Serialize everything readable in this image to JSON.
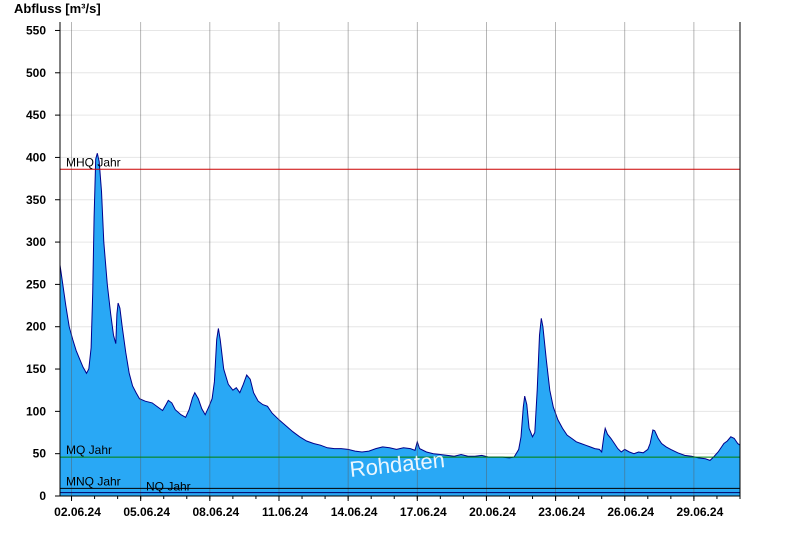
{
  "chart_data": {
    "type": "area",
    "title": "",
    "ylabel": "Abfluss [m³/s]",
    "xlabel": "",
    "ylim": [
      0,
      560
    ],
    "yticks": [
      0,
      50,
      100,
      150,
      200,
      250,
      300,
      350,
      400,
      450,
      500,
      550
    ],
    "x_start_day": 1.5,
    "x_end_day": 31.0,
    "xticks": [
      {
        "day": 2,
        "label": "02.06.24"
      },
      {
        "day": 5,
        "label": "05.06.24"
      },
      {
        "day": 8,
        "label": "08.06.24"
      },
      {
        "day": 11,
        "label": "11.06.24"
      },
      {
        "day": 14,
        "label": "14.06.24"
      },
      {
        "day": 17,
        "label": "17.06.24"
      },
      {
        "day": 20,
        "label": "20.06.24"
      },
      {
        "day": 23,
        "label": "23.06.24"
      },
      {
        "day": 26,
        "label": "26.06.24"
      },
      {
        "day": 29,
        "label": "29.06.24"
      }
    ],
    "grid": "vertical lines at day ticks, horizontal lines at y ticks",
    "series": [
      {
        "color": "#29a8f5",
        "line_color": "#00008b",
        "points": [
          [
            1.5,
            273
          ],
          [
            1.62,
            250
          ],
          [
            1.75,
            225
          ],
          [
            1.9,
            200
          ],
          [
            2.05,
            185
          ],
          [
            2.2,
            172
          ],
          [
            2.35,
            162
          ],
          [
            2.5,
            152
          ],
          [
            2.65,
            145
          ],
          [
            2.75,
            150
          ],
          [
            2.85,
            175
          ],
          [
            2.92,
            240
          ],
          [
            2.98,
            330
          ],
          [
            3.05,
            398
          ],
          [
            3.12,
            405
          ],
          [
            3.2,
            395
          ],
          [
            3.3,
            360
          ],
          [
            3.4,
            300
          ],
          [
            3.55,
            250
          ],
          [
            3.7,
            215
          ],
          [
            3.82,
            190
          ],
          [
            3.92,
            180
          ],
          [
            3.97,
            215
          ],
          [
            4.02,
            228
          ],
          [
            4.1,
            222
          ],
          [
            4.2,
            200
          ],
          [
            4.35,
            170
          ],
          [
            4.5,
            145
          ],
          [
            4.65,
            130
          ],
          [
            4.8,
            122
          ],
          [
            4.95,
            115
          ],
          [
            5.2,
            112
          ],
          [
            5.5,
            110
          ],
          [
            5.8,
            104
          ],
          [
            5.95,
            101
          ],
          [
            6.1,
            108
          ],
          [
            6.2,
            113
          ],
          [
            6.35,
            110
          ],
          [
            6.5,
            102
          ],
          [
            6.75,
            96
          ],
          [
            6.95,
            93
          ],
          [
            7.1,
            102
          ],
          [
            7.25,
            116
          ],
          [
            7.35,
            122
          ],
          [
            7.5,
            115
          ],
          [
            7.65,
            103
          ],
          [
            7.8,
            96
          ],
          [
            7.95,
            105
          ],
          [
            8.1,
            115
          ],
          [
            8.2,
            135
          ],
          [
            8.3,
            185
          ],
          [
            8.37,
            198
          ],
          [
            8.45,
            185
          ],
          [
            8.6,
            150
          ],
          [
            8.8,
            132
          ],
          [
            9.0,
            125
          ],
          [
            9.15,
            128
          ],
          [
            9.3,
            122
          ],
          [
            9.45,
            132
          ],
          [
            9.6,
            143
          ],
          [
            9.75,
            138
          ],
          [
            9.9,
            122
          ],
          [
            10.1,
            112
          ],
          [
            10.3,
            108
          ],
          [
            10.5,
            106
          ],
          [
            10.7,
            98
          ],
          [
            11.0,
            90
          ],
          [
            11.3,
            83
          ],
          [
            11.6,
            76
          ],
          [
            11.9,
            70
          ],
          [
            12.2,
            65
          ],
          [
            12.5,
            62
          ],
          [
            12.8,
            60
          ],
          [
            13.1,
            57
          ],
          [
            13.4,
            56
          ],
          [
            13.7,
            56
          ],
          [
            14.0,
            55
          ],
          [
            14.3,
            53
          ],
          [
            14.6,
            52
          ],
          [
            14.9,
            53
          ],
          [
            15.2,
            56
          ],
          [
            15.5,
            58
          ],
          [
            15.8,
            57
          ],
          [
            16.1,
            55
          ],
          [
            16.4,
            57
          ],
          [
            16.7,
            56
          ],
          [
            16.9,
            54
          ],
          [
            17.0,
            64
          ],
          [
            17.1,
            56
          ],
          [
            17.4,
            52
          ],
          [
            17.7,
            50
          ],
          [
            18.0,
            49
          ],
          [
            18.3,
            48
          ],
          [
            18.6,
            47
          ],
          [
            18.9,
            49
          ],
          [
            19.2,
            47
          ],
          [
            19.5,
            47
          ],
          [
            19.8,
            48
          ],
          [
            20.1,
            46
          ],
          [
            20.4,
            46
          ],
          [
            20.7,
            46
          ],
          [
            21.0,
            45
          ],
          [
            21.2,
            46
          ],
          [
            21.4,
            55
          ],
          [
            21.5,
            70
          ],
          [
            21.6,
            105
          ],
          [
            21.66,
            118
          ],
          [
            21.75,
            108
          ],
          [
            21.85,
            80
          ],
          [
            22.0,
            70
          ],
          [
            22.1,
            75
          ],
          [
            22.2,
            125
          ],
          [
            22.3,
            190
          ],
          [
            22.38,
            210
          ],
          [
            22.45,
            200
          ],
          [
            22.6,
            160
          ],
          [
            22.75,
            125
          ],
          [
            22.9,
            105
          ],
          [
            23.1,
            90
          ],
          [
            23.3,
            80
          ],
          [
            23.5,
            72
          ],
          [
            23.7,
            68
          ],
          [
            23.9,
            64
          ],
          [
            24.1,
            62
          ],
          [
            24.3,
            60
          ],
          [
            24.5,
            58
          ],
          [
            24.7,
            56
          ],
          [
            24.9,
            55
          ],
          [
            25.0,
            52
          ],
          [
            25.1,
            72
          ],
          [
            25.15,
            80
          ],
          [
            25.25,
            73
          ],
          [
            25.4,
            68
          ],
          [
            25.55,
            62
          ],
          [
            25.7,
            56
          ],
          [
            25.85,
            52
          ],
          [
            26.0,
            55
          ],
          [
            26.2,
            52
          ],
          [
            26.4,
            50
          ],
          [
            26.6,
            52
          ],
          [
            26.8,
            51
          ],
          [
            27.0,
            55
          ],
          [
            27.1,
            62
          ],
          [
            27.22,
            78
          ],
          [
            27.3,
            77
          ],
          [
            27.45,
            68
          ],
          [
            27.6,
            62
          ],
          [
            27.8,
            58
          ],
          [
            28.0,
            55
          ],
          [
            28.3,
            51
          ],
          [
            28.6,
            48
          ],
          [
            28.9,
            47
          ],
          [
            29.2,
            45
          ],
          [
            29.5,
            44
          ],
          [
            29.7,
            42
          ],
          [
            29.85,
            46
          ],
          [
            30.05,
            52
          ],
          [
            30.2,
            58
          ],
          [
            30.3,
            62
          ],
          [
            30.45,
            65
          ],
          [
            30.6,
            70
          ],
          [
            30.75,
            68
          ],
          [
            30.9,
            62
          ],
          [
            31.0,
            60
          ]
        ]
      }
    ],
    "reference_lines": [
      {
        "label": "MHQ Jahr",
        "value": 386,
        "color": "#cc0000"
      },
      {
        "label": "MQ Jahr",
        "value": 46,
        "color": "#008000"
      },
      {
        "label": "MNQ Jahr",
        "value": 9,
        "color": "#000000"
      },
      {
        "label": "NQ Jahr",
        "value": 4,
        "color": "#000066"
      }
    ],
    "watermark": "Rohdaten"
  }
}
